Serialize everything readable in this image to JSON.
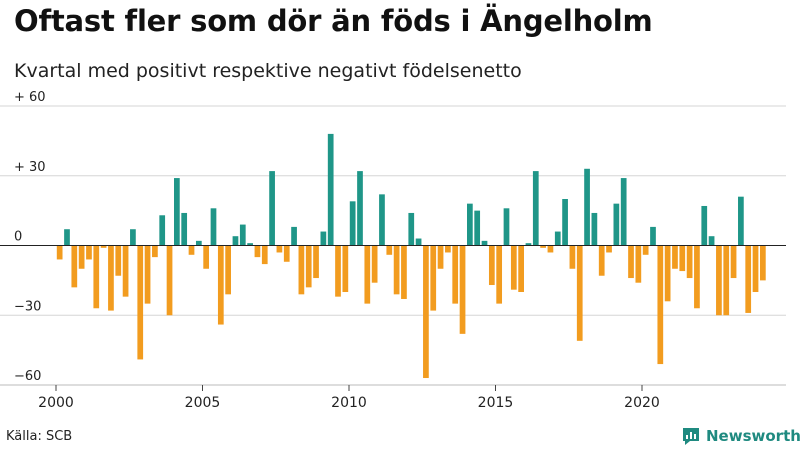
{
  "chart_data": {
    "type": "bar",
    "title": "Oftast fler som dör än föds i Ängelholm",
    "subtitle": "Kvartal med positivt respektive negativt födelsenetto",
    "xlabel": "",
    "ylabel": "",
    "ylim": [
      -60,
      60
    ],
    "y_ticks": [
      60,
      30,
      0,
      -30,
      -60
    ],
    "y_tick_labels": [
      "+ 60",
      "+ 30",
      "0",
      "−30",
      "−60"
    ],
    "x_ticks": [
      2000,
      2005,
      2010,
      2015,
      2020
    ],
    "x_tick_labels": [
      "2000",
      "2005",
      "2010",
      "2015",
      "2020"
    ],
    "x_start": 2000,
    "periods_per_year": 4,
    "positive_color": "#1f9688",
    "negative_color": "#f29c1f",
    "values": [
      -6,
      7,
      -18,
      -10,
      -6,
      -27,
      -1,
      -28,
      -13,
      -22,
      7,
      -49,
      -25,
      -5,
      13,
      -30,
      29,
      14,
      -4,
      2,
      -10,
      16,
      -34,
      -21,
      4,
      9,
      1,
      -5,
      -8,
      32,
      -3,
      -7,
      8,
      -21,
      -18,
      -14,
      6,
      48,
      -22,
      -20,
      19,
      32,
      -25,
      -16,
      22,
      -4,
      -21,
      -23,
      14,
      3,
      -57,
      -28,
      -10,
      -3,
      -25,
      -38,
      18,
      15,
      2,
      -17,
      -25,
      16,
      -19,
      -20,
      1,
      32,
      -1,
      -3,
      6,
      20,
      -10,
      -41,
      33,
      14,
      -13,
      -3,
      18,
      29,
      -14,
      -16,
      -4,
      8,
      -51,
      -24,
      -10,
      -11,
      -14,
      -27,
      17,
      4,
      -30,
      -30,
      -14,
      21,
      -29,
      -20,
      -15
    ],
    "source": "Källa: SCB"
  },
  "brand": {
    "name": "Newsworthy",
    "logo_icon": "newsworthy-logo-icon"
  }
}
